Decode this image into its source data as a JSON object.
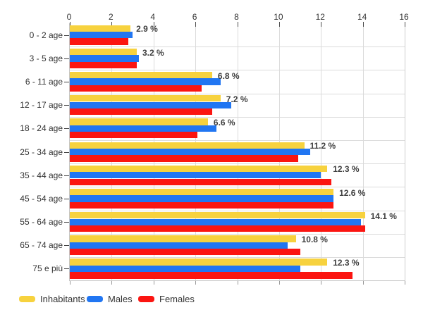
{
  "chart_data": {
    "type": "bar",
    "orientation": "horizontal",
    "title": "",
    "xlabel": "",
    "ylabel": "",
    "xlim": [
      0,
      16
    ],
    "x_ticks": [
      0,
      2,
      4,
      6,
      8,
      10,
      12,
      14,
      16
    ],
    "grid": true,
    "legend_position": "bottom-left",
    "categories": [
      "0 - 2 age",
      "3 - 5 age",
      "6 - 11 age",
      "12 - 17 age",
      "18 - 24 age",
      "25 - 34 age",
      "35 - 44 age",
      "45 - 54 age",
      "55 - 64 age",
      "65 - 74 age",
      "75 e più"
    ],
    "series": [
      {
        "name": "Inhabitants",
        "color": "#f7d23e",
        "values": [
          2.9,
          3.2,
          6.8,
          7.2,
          6.6,
          11.2,
          12.3,
          12.6,
          14.1,
          10.8,
          12.3
        ]
      },
      {
        "name": "Males",
        "color": "#2176f2",
        "values": [
          3.0,
          3.3,
          7.2,
          7.7,
          7.0,
          11.5,
          12.0,
          12.6,
          13.9,
          10.4,
          11.0
        ]
      },
      {
        "name": "Females",
        "color": "#fb1511",
        "values": [
          2.8,
          3.2,
          6.3,
          6.8,
          6.1,
          10.9,
          12.5,
          12.6,
          14.1,
          11.0,
          13.5
        ]
      }
    ],
    "value_labels": [
      "2.9 %",
      "3.2 %",
      "6.8 %",
      "7.2 %",
      "6.6 %",
      "11.2 %",
      "12.3 %",
      "12.6 %",
      "14.1 %",
      "10.8 %",
      "12.3 %"
    ],
    "colors": {
      "grid": "#dbdbdb",
      "axis_text": "#333333",
      "value_label_text": "#3f3f3f",
      "background": "#ffffff"
    }
  }
}
